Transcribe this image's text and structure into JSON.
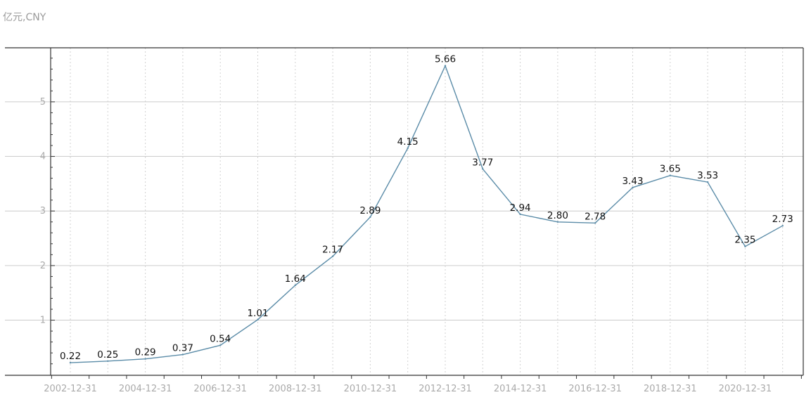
{
  "chart_data": {
    "type": "line",
    "title": "",
    "unit_label": "亿元,CNY",
    "x": [
      "2002-12-31",
      "2003-12-31",
      "2004-12-31",
      "2005-12-31",
      "2006-12-31",
      "2007-12-31",
      "2008-12-31",
      "2009-12-31",
      "2010-12-31",
      "2011-12-31",
      "2012-12-31",
      "2013-12-31",
      "2014-12-31",
      "2015-12-31",
      "2016-12-31",
      "2017-12-31",
      "2018-12-31",
      "2019-12-31",
      "2020-12-31",
      "2021-12-31"
    ],
    "x_tick_labels": [
      "2002-12-31",
      "2004-12-31",
      "2006-12-31",
      "2008-12-31",
      "2010-12-31",
      "2012-12-31",
      "2014-12-31",
      "2016-12-31",
      "2018-12-31",
      "2020-12-31"
    ],
    "series": [
      {
        "values": [
          0.22,
          0.25,
          0.29,
          0.37,
          0.54,
          1.01,
          1.64,
          2.17,
          2.89,
          4.15,
          5.66,
          3.77,
          2.94,
          2.8,
          2.78,
          3.43,
          3.65,
          3.53,
          2.35,
          2.73
        ],
        "labels": [
          "0.22",
          "0.25",
          "0.29",
          "0.37",
          "0.54",
          "1.01",
          "1.64",
          "2.17",
          "2.89",
          "4.15",
          "5.66",
          "3.77",
          "2.94",
          "2.80",
          "2.78",
          "3.43",
          "3.65",
          "3.53",
          "2.35",
          "2.73"
        ]
      }
    ],
    "y_ticks": [
      "1",
      "2",
      "3",
      "4",
      "5"
    ],
    "ylim": [
      -0.01,
      5.99
    ],
    "grid": true,
    "colors": {
      "line": "#5b8ca8",
      "grid": "#cccccc",
      "axis": "#333333"
    }
  }
}
